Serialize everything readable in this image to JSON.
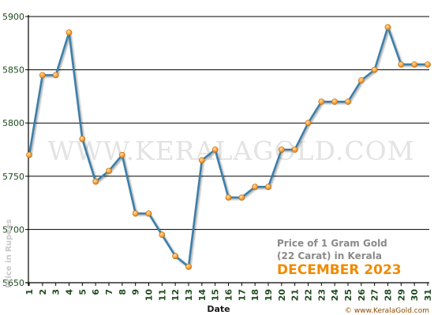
{
  "chart_data": {
    "type": "line",
    "title_line1": "Price of 1 Gram Gold",
    "title_line2": "(22 Carat) in Kerala",
    "subtitle": "DECEMBER 2023",
    "xlabel": "Date",
    "ylabel": "Price in Rupees",
    "watermark": "WWW.KERALAGOLD.COM",
    "credit": "© www.KeralaGold.com",
    "x": [
      1,
      2,
      3,
      4,
      5,
      6,
      7,
      8,
      9,
      10,
      11,
      12,
      13,
      14,
      15,
      16,
      17,
      18,
      19,
      20,
      21,
      22,
      23,
      24,
      25,
      26,
      27,
      28,
      29,
      30,
      31
    ],
    "y": [
      5770,
      5845,
      5845,
      5885,
      5785,
      5745,
      5755,
      5770,
      5715,
      5715,
      5695,
      5675,
      5665,
      5765,
      5775,
      5730,
      5730,
      5740,
      5740,
      5775,
      5775,
      5800,
      5820,
      5820,
      5820,
      5840,
      5850,
      5890,
      5855,
      5855,
      5855
    ],
    "yticks": [
      5650,
      5700,
      5750,
      5800,
      5850,
      5900
    ],
    "ylim": [
      5650,
      5900
    ],
    "xlim": [
      1,
      31
    ],
    "grid": "horizontal",
    "line_color": "#3c7fa8",
    "marker_color": "#f5a442"
  }
}
